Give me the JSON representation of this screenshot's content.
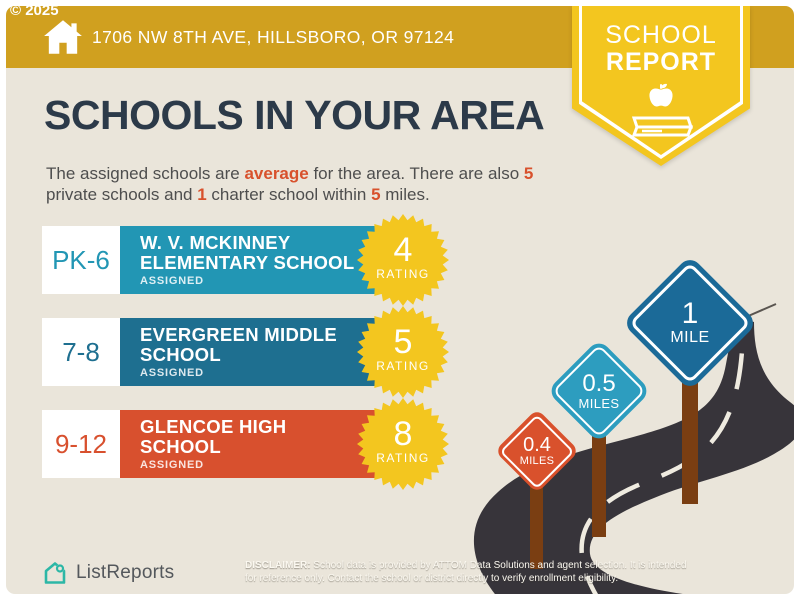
{
  "copyright": "© 2025",
  "header": {
    "address": "1706 NW 8TH AVE, HILLSBORO, OR 97124",
    "badge_line1": "SCHOOL",
    "badge_line2": "REPORT"
  },
  "main": {
    "title": "SCHOOLS IN YOUR AREA",
    "subtitle": {
      "part1": "The assigned schools are ",
      "hl1": "average",
      "part2": " for the area. There are also ",
      "hl2": "5",
      "part3": " private schools and ",
      "hl3": "1",
      "part4": " charter school within ",
      "hl4": "5",
      "part5": " miles."
    }
  },
  "schools": [
    {
      "grades": "PK-6",
      "name_line1": "W. V. MCKINNEY",
      "name_line2": "ELEMENTARY SCHOOL",
      "status": "ASSIGNED",
      "rating": "4",
      "rating_label": "RATING",
      "color": "#2296B4"
    },
    {
      "grades": "7-8",
      "name_line1": "EVERGREEN MIDDLE",
      "name_line2": "SCHOOL",
      "status": "ASSIGNED",
      "rating": "5",
      "rating_label": "RATING",
      "color": "#1E6F90"
    },
    {
      "grades": "9-12",
      "name_line1": "GLENCOE HIGH",
      "name_line2": "SCHOOL",
      "status": "ASSIGNED",
      "rating": "8",
      "rating_label": "RATING",
      "color": "#D8502E"
    }
  ],
  "signs": [
    {
      "value": "1",
      "unit": "MILE",
      "color": "#1B6A98"
    },
    {
      "value": "0.5",
      "unit": "MILES",
      "color": "#2D9DBF"
    },
    {
      "value": "0.4",
      "unit": "MILES",
      "color": "#D9512C"
    }
  ],
  "footer": {
    "brand": "ListReports",
    "disclaimer_label": "DISCLAIMER:",
    "disclaimer_line1": " School data is provided by ATTOM Data Solutions and agent selection. It is intended",
    "disclaimer_line2": "for reference only. Contact the school or district directly to verify enrollment eligibility."
  },
  "colors": {
    "header_gold": "#D0A01F",
    "badge_yellow": "#F3C61F",
    "starburst_yellow": "#F3C61F",
    "title_navy": "#2C3A49",
    "accent_orange": "#D8512C",
    "background_beige": "#EAE5DA",
    "road_charcoal": "#37343A",
    "post_brown": "#7A3E12",
    "brand_teal": "#2CB7A6"
  }
}
